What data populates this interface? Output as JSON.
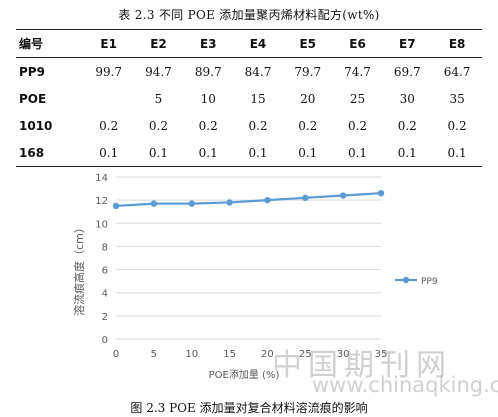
{
  "table": {
    "title": "表 2.3 不同 POE 添加量聚丙烯材料配方(wt%)",
    "header": [
      "编号",
      "E1",
      "E2",
      "E3",
      "E4",
      "E5",
      "E6",
      "E7",
      "E8"
    ],
    "rows": [
      {
        "label": "PP9",
        "cells": [
          "99.7",
          "94.7",
          "89.7",
          "84.7",
          "79.7",
          "74.7",
          "69.7",
          "64.7"
        ]
      },
      {
        "label": "POE",
        "cells": [
          "",
          "5",
          "10",
          "15",
          "20",
          "25",
          "30",
          "35"
        ]
      },
      {
        "label": "1010",
        "cells": [
          "0.2",
          "0.2",
          "0.2",
          "0.2",
          "0.2",
          "0.2",
          "0.2",
          "0.2"
        ]
      },
      {
        "label": "168",
        "cells": [
          "0.1",
          "0.1",
          "0.1",
          "0.1",
          "0.1",
          "0.1",
          "0.1",
          "0.1"
        ]
      }
    ]
  },
  "chart_data": {
    "type": "line",
    "xlabel": "POE添加量 (%)",
    "ylabel": "溶流痕高度（cm）",
    "x": [
      0,
      5,
      10,
      15,
      20,
      25,
      30,
      35
    ],
    "series": [
      {
        "name": "PP9",
        "values": [
          11.5,
          11.7,
          11.7,
          11.8,
          12.0,
          12.2,
          12.4,
          12.6
        ]
      }
    ],
    "xticks": [
      "0",
      "5",
      "10",
      "15",
      "20",
      "25",
      "30",
      "35"
    ],
    "yticks": [
      "0",
      "2",
      "4",
      "6",
      "8",
      "10",
      "12",
      "14"
    ],
    "xlim": [
      0,
      35
    ],
    "ylim": [
      0,
      14
    ],
    "grid": "horizontal",
    "legend_position": "right",
    "series_color": "#5b9bd5"
  },
  "figure_caption": "图 2.3 POE 添加量对复合材料溶流痕的影响",
  "watermark": {
    "chinese": "中国期刊网",
    "url": "www.chinaqking.com"
  }
}
